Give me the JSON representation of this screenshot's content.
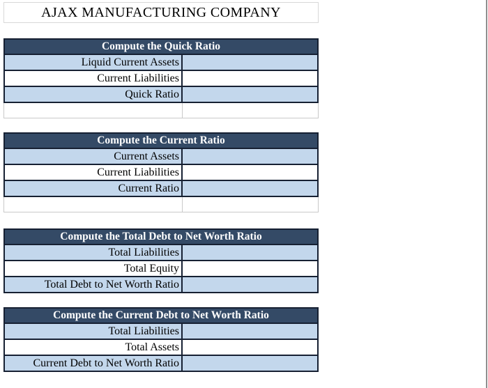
{
  "title": "AJAX MANUFACTURING COMPANY",
  "colors": {
    "table_header_bg": "#344A66",
    "table_header_text": "#ffffff",
    "row_alt_bg": "#C3D7EC",
    "row_white_bg": "#ffffff",
    "table_border": "#162032",
    "grid_line": "#c9c9c9"
  },
  "tables": [
    {
      "header": "Compute the Quick Ratio",
      "rows": [
        {
          "label": "Liquid Current Assets",
          "value": ""
        },
        {
          "label": "Current Liabilities",
          "value": ""
        },
        {
          "label": "Quick Ratio",
          "value": ""
        }
      ],
      "trailing_blank_row": true
    },
    {
      "header": "Compute the Current Ratio",
      "rows": [
        {
          "label": "Current Assets",
          "value": ""
        },
        {
          "label": "Current Liabilities",
          "value": ""
        },
        {
          "label": "Current Ratio",
          "value": ""
        }
      ],
      "trailing_blank_row": true
    },
    {
      "header": "Compute the Total Debt to Net Worth Ratio",
      "rows": [
        {
          "label": "Total Liabilities",
          "value": ""
        },
        {
          "label": "Total Equity",
          "value": ""
        },
        {
          "label": "Total Debt to Net Worth Ratio",
          "value": ""
        }
      ],
      "trailing_blank_row": false
    },
    {
      "header": "Compute the Current Debt to Net Worth Ratio",
      "rows": [
        {
          "label": "Total Liabilities",
          "value": ""
        },
        {
          "label": "Total Assets",
          "value": ""
        },
        {
          "label": "Current Debt to Net Worth Ratio",
          "value": ""
        }
      ],
      "trailing_blank_row": false
    }
  ]
}
